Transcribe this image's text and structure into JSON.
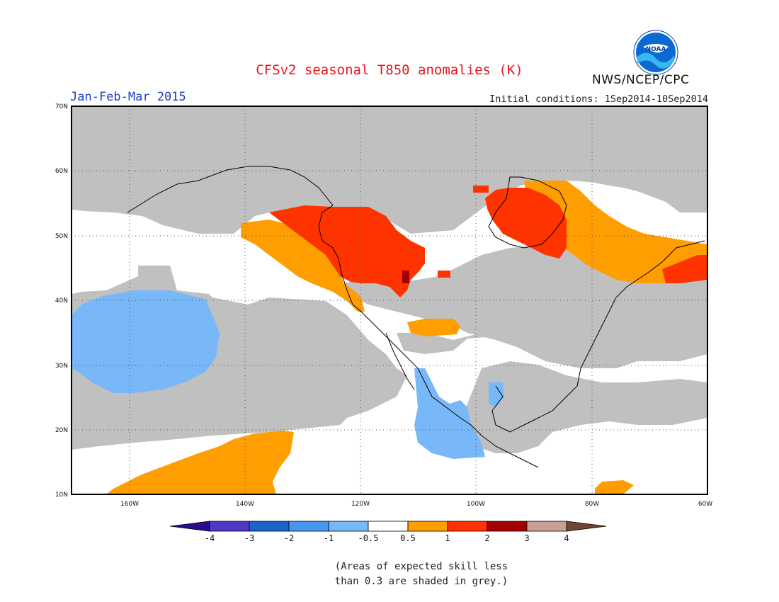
{
  "header": {
    "title": "CFSv2 seasonal T850 anomalies (K)",
    "season": "Jan-Feb-Mar 2015",
    "initial_conditions": "Initial conditions: 1Sep2014-10Sep2014",
    "agency": "NWS/NCEP/CPC",
    "logo_text": "NOAA"
  },
  "map": {
    "projection": "latitude-longitude",
    "lon_range": [
      -170,
      -60
    ],
    "lat_range": [
      10,
      70
    ],
    "lon_ticks": [
      "160W",
      "140W",
      "120W",
      "100W",
      "80W",
      "60W"
    ],
    "lat_ticks": [
      "70N",
      "60N",
      "50N",
      "40N",
      "30N",
      "20N",
      "10N"
    ],
    "gridlines": "dotted",
    "colors": {
      "grey_low_skill": "#c0c0c0",
      "below_-1": "#78b8f8",
      "above_0.5": "#ff9e00",
      "above_1": "#ff3300",
      "above_2": "#a50000"
    }
  },
  "colorbar": {
    "labels": [
      "-4",
      "-3",
      "-2",
      "-1",
      "-0.5",
      "0.5",
      "1",
      "2",
      "3",
      "4"
    ],
    "colors": [
      "#2a0c8e",
      "#5038c6",
      "#1a64c8",
      "#4696f0",
      "#78b8f8",
      "#ffffff",
      "#ff9e00",
      "#ff3300",
      "#a50000",
      "#c8a096",
      "#6e4632"
    ]
  },
  "footnote": {
    "line1": "(Areas of expected skill less",
    "line2": "than 0.3 are shaded in grey.)"
  }
}
